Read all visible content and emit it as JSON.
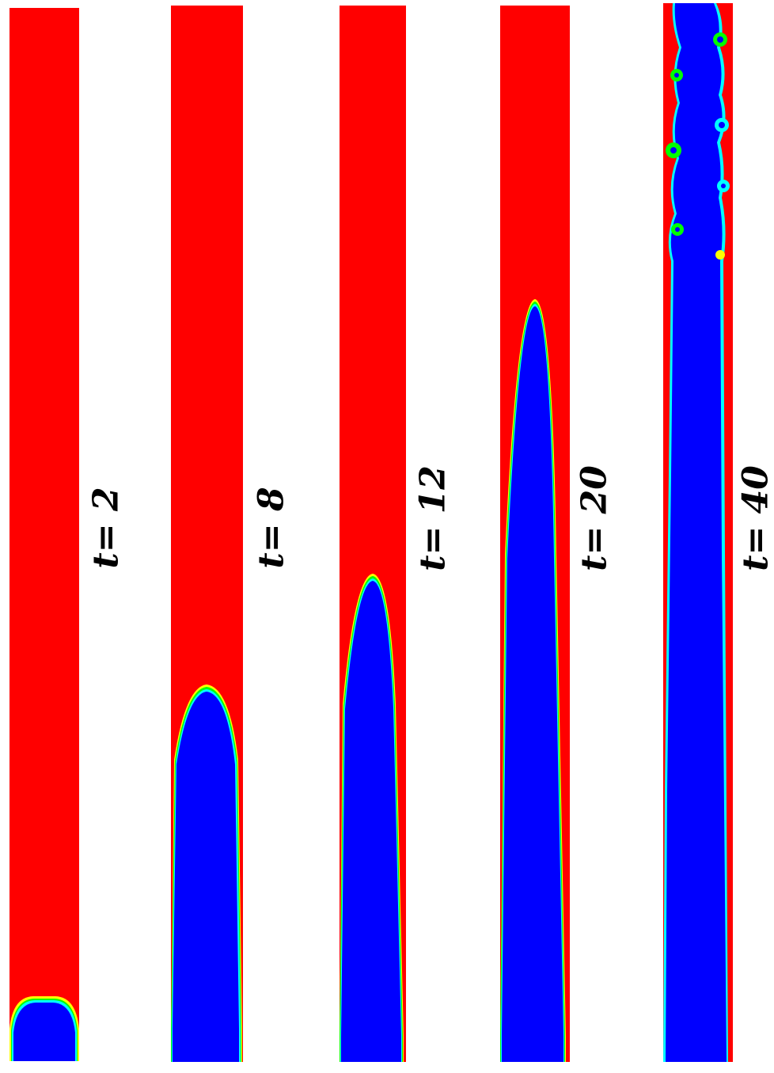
{
  "colors": {
    "outer_fluid": "#ff0000",
    "inner_fluid": "#0000ff",
    "interface_band": [
      "#00ffff",
      "#00ff00",
      "#ffff00"
    ]
  },
  "panels": [
    {
      "id": "t2",
      "label": "t= 2"
    },
    {
      "id": "t8",
      "label": "t= 8"
    },
    {
      "id": "t12",
      "label": "t= 12"
    },
    {
      "id": "t20",
      "label": "t= 20"
    },
    {
      "id": "t40",
      "label": "t= 40"
    }
  ]
}
